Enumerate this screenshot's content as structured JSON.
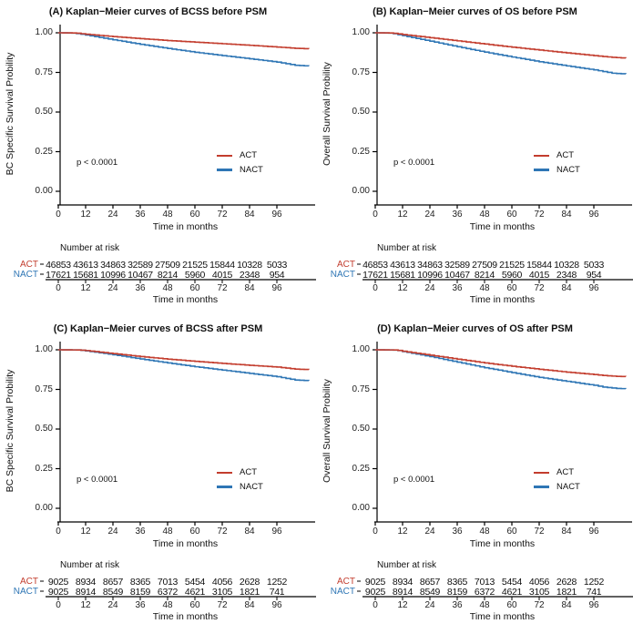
{
  "chart_data": [
    {
      "id": "A",
      "type": "line",
      "title": "(A) Kaplan−Meier curves of BCSS before PSM",
      "xlabel": "Time in months",
      "ylabel": "BC Specific Survival Probility",
      "pvalue": "p < 0.0001",
      "xlim": [
        0,
        110
      ],
      "ylim": [
        0,
        1
      ],
      "xticks": [
        0,
        12,
        24,
        36,
        48,
        60,
        72,
        84,
        96
      ],
      "yticks": [
        "1.00",
        "0.75",
        "0.50",
        "0.25",
        "0.00"
      ],
      "legend": [
        {
          "name": "ACT",
          "color": "#c33d2e"
        },
        {
          "name": "NACT",
          "color": "#2e76b5"
        }
      ],
      "series": [
        {
          "name": "ACT",
          "color": "#c33d2e",
          "points": [
            [
              0,
              1
            ],
            [
              7,
              0.999
            ],
            [
              12,
              0.991
            ],
            [
              24,
              0.976
            ],
            [
              36,
              0.963
            ],
            [
              48,
              0.951
            ],
            [
              60,
              0.941
            ],
            [
              72,
              0.931
            ],
            [
              84,
              0.921
            ],
            [
              96,
              0.91
            ],
            [
              104,
              0.902
            ],
            [
              110,
              0.899
            ]
          ]
        },
        {
          "name": "NACT",
          "color": "#2e76b5",
          "points": [
            [
              0,
              1
            ],
            [
              7,
              0.998
            ],
            [
              12,
              0.986
            ],
            [
              24,
              0.956
            ],
            [
              36,
              0.927
            ],
            [
              48,
              0.901
            ],
            [
              60,
              0.877
            ],
            [
              72,
              0.856
            ],
            [
              84,
              0.836
            ],
            [
              96,
              0.815
            ],
            [
              104,
              0.795
            ],
            [
              110,
              0.79
            ]
          ]
        }
      ],
      "risk_table": {
        "header": "Number at risk",
        "xlabel": "Time in months",
        "rows": [
          {
            "label": "ACT",
            "color": "#c33d2e",
            "values": [
              46853,
              43613,
              34863,
              32589,
              27509,
              21525,
              15844,
              10328,
              5033
            ]
          },
          {
            "label": "NACT",
            "color": "#2e76b5",
            "values": [
              17621,
              15681,
              10996,
              10467,
              8214,
              5960,
              4015,
              2348,
              954
            ]
          }
        ]
      }
    },
    {
      "id": "B",
      "type": "line",
      "title": "(B) Kaplan−Meier curves of OS before PSM",
      "xlabel": "Time in months",
      "ylabel": "Overall Survival Probility",
      "pvalue": "p < 0.0001",
      "xlim": [
        0,
        110
      ],
      "ylim": [
        0,
        1
      ],
      "xticks": [
        0,
        12,
        24,
        36,
        48,
        60,
        72,
        84,
        96
      ],
      "yticks": [
        "1.00",
        "0.75",
        "0.50",
        "0.25",
        "0.00"
      ],
      "legend": [
        {
          "name": "ACT",
          "color": "#c33d2e"
        },
        {
          "name": "NACT",
          "color": "#2e76b5"
        }
      ],
      "series": [
        {
          "name": "ACT",
          "color": "#c33d2e",
          "points": [
            [
              0,
              1
            ],
            [
              7,
              0.999
            ],
            [
              12,
              0.989
            ],
            [
              24,
              0.969
            ],
            [
              36,
              0.949
            ],
            [
              48,
              0.929
            ],
            [
              60,
              0.909
            ],
            [
              72,
              0.891
            ],
            [
              84,
              0.873
            ],
            [
              96,
              0.856
            ],
            [
              104,
              0.845
            ],
            [
              110,
              0.84
            ]
          ]
        },
        {
          "name": "NACT",
          "color": "#2e76b5",
          "points": [
            [
              0,
              1
            ],
            [
              7,
              0.998
            ],
            [
              12,
              0.982
            ],
            [
              24,
              0.947
            ],
            [
              36,
              0.912
            ],
            [
              48,
              0.878
            ],
            [
              60,
              0.847
            ],
            [
              72,
              0.817
            ],
            [
              84,
              0.791
            ],
            [
              96,
              0.766
            ],
            [
              104,
              0.745
            ],
            [
              110,
              0.74
            ]
          ]
        }
      ],
      "risk_table": {
        "header": "Number at risk",
        "xlabel": "Time in months",
        "rows": [
          {
            "label": "ACT",
            "color": "#c33d2e",
            "values": [
              46853,
              43613,
              34863,
              32589,
              27509,
              21525,
              15844,
              10328,
              5033
            ]
          },
          {
            "label": "NACT",
            "color": "#2e76b5",
            "values": [
              17621,
              15681,
              10996,
              10467,
              8214,
              5960,
              4015,
              2348,
              954
            ]
          }
        ]
      }
    },
    {
      "id": "C",
      "type": "line",
      "title": "(C) Kaplan−Meier curves of BCSS after PSM",
      "xlabel": "Time in months",
      "ylabel": "BC Specific Survival Probility",
      "pvalue": "p < 0.0001",
      "xlim": [
        0,
        110
      ],
      "ylim": [
        0,
        1
      ],
      "xticks": [
        0,
        12,
        24,
        36,
        48,
        60,
        72,
        84,
        96
      ],
      "yticks": [
        "1.00",
        "0.75",
        "0.50",
        "0.25",
        "0.00"
      ],
      "legend": [
        {
          "name": "ACT",
          "color": "#c33d2e"
        },
        {
          "name": "NACT",
          "color": "#2e76b5"
        }
      ],
      "series": [
        {
          "name": "ACT",
          "color": "#c33d2e",
          "points": [
            [
              0,
              1
            ],
            [
              9,
              0.999
            ],
            [
              12,
              0.995
            ],
            [
              24,
              0.976
            ],
            [
              36,
              0.957
            ],
            [
              48,
              0.941
            ],
            [
              60,
              0.927
            ],
            [
              72,
              0.914
            ],
            [
              84,
              0.902
            ],
            [
              96,
              0.891
            ],
            [
              104,
              0.878
            ],
            [
              110,
              0.875
            ]
          ]
        },
        {
          "name": "NACT",
          "color": "#2e76b5",
          "points": [
            [
              0,
              1
            ],
            [
              9,
              0.999
            ],
            [
              12,
              0.993
            ],
            [
              24,
              0.969
            ],
            [
              36,
              0.942
            ],
            [
              48,
              0.917
            ],
            [
              60,
              0.893
            ],
            [
              72,
              0.872
            ],
            [
              84,
              0.851
            ],
            [
              96,
              0.83
            ],
            [
              104,
              0.809
            ],
            [
              110,
              0.805
            ]
          ]
        }
      ],
      "risk_table": {
        "header": "Number at risk",
        "xlabel": "Time in months",
        "rows": [
          {
            "label": "ACT",
            "color": "#c33d2e",
            "values": [
              9025,
              8934,
              8657,
              8365,
              7013,
              5454,
              4056,
              2628,
              1252
            ]
          },
          {
            "label": "NACT",
            "color": "#2e76b5",
            "values": [
              9025,
              8914,
              8549,
              8159,
              6372,
              4621,
              3105,
              1821,
              741
            ]
          }
        ]
      }
    },
    {
      "id": "D",
      "type": "line",
      "title": "(D) Kaplan−Meier curves of OS after PSM",
      "xlabel": "Time in months",
      "ylabel": "Overall Survival Probility",
      "pvalue": "p < 0.0001",
      "xlim": [
        0,
        110
      ],
      "ylim": [
        0,
        1
      ],
      "xticks": [
        0,
        12,
        24,
        36,
        48,
        60,
        72,
        84,
        96
      ],
      "yticks": [
        "1.00",
        "0.75",
        "0.50",
        "0.25",
        "0.00"
      ],
      "legend": [
        {
          "name": "ACT",
          "color": "#c33d2e"
        },
        {
          "name": "NACT",
          "color": "#2e76b5"
        }
      ],
      "series": [
        {
          "name": "ACT",
          "color": "#c33d2e",
          "points": [
            [
              0,
              1
            ],
            [
              9,
              0.999
            ],
            [
              12,
              0.991
            ],
            [
              24,
              0.966
            ],
            [
              36,
              0.941
            ],
            [
              48,
              0.917
            ],
            [
              60,
              0.896
            ],
            [
              72,
              0.877
            ],
            [
              84,
              0.859
            ],
            [
              96,
              0.844
            ],
            [
              100,
              0.838
            ],
            [
              106,
              0.832
            ],
            [
              110,
              0.831
            ]
          ]
        },
        {
          "name": "NACT",
          "color": "#2e76b5",
          "points": [
            [
              0,
              1
            ],
            [
              9,
              0.998
            ],
            [
              12,
              0.989
            ],
            [
              24,
              0.957
            ],
            [
              36,
              0.922
            ],
            [
              48,
              0.887
            ],
            [
              60,
              0.856
            ],
            [
              72,
              0.826
            ],
            [
              84,
              0.801
            ],
            [
              96,
              0.776
            ],
            [
              100,
              0.765
            ],
            [
              106,
              0.756
            ],
            [
              110,
              0.754
            ]
          ]
        }
      ],
      "risk_table": {
        "header": "Number at risk",
        "xlabel": "Time in months",
        "rows": [
          {
            "label": "ACT",
            "color": "#c33d2e",
            "values": [
              9025,
              8934,
              8657,
              8365,
              7013,
              5454,
              4056,
              2628,
              1252
            ]
          },
          {
            "label": "NACT",
            "color": "#2e76b5",
            "values": [
              9025,
              8914,
              8549,
              8159,
              6372,
              4621,
              3105,
              1821,
              741
            ]
          }
        ]
      }
    }
  ]
}
